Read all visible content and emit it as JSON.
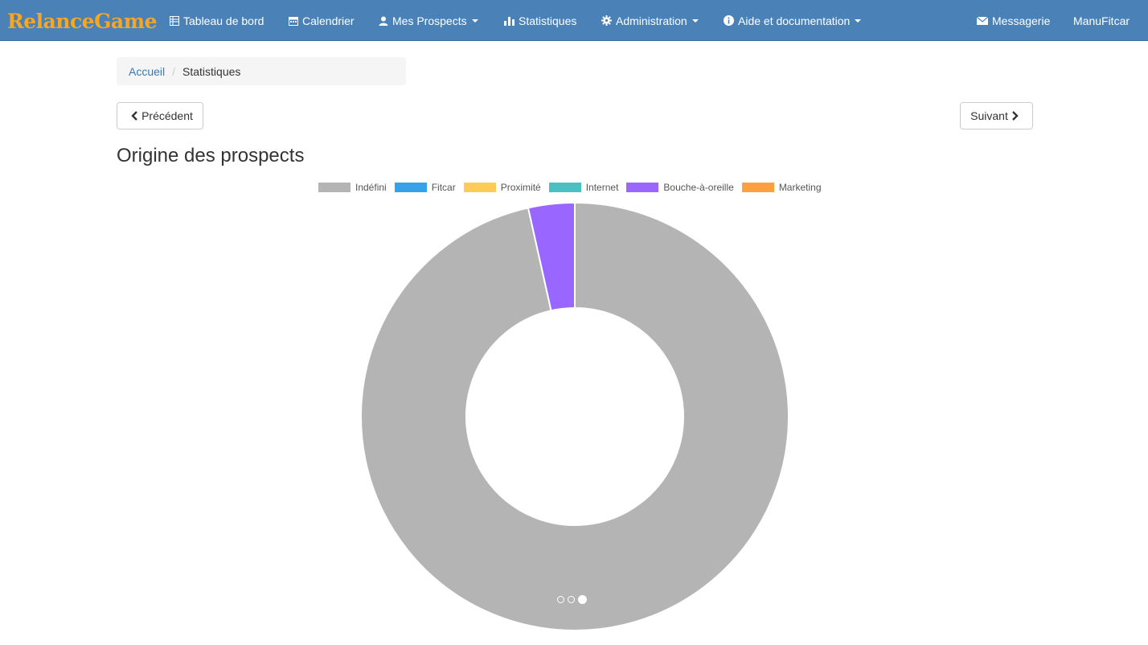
{
  "navbar": {
    "brand": "RelanceGame",
    "items": [
      {
        "label": "Tableau de bord",
        "icon": "table-icon"
      },
      {
        "label": "Calendrier",
        "icon": "calendar-icon"
      },
      {
        "label": "Mes Prospects",
        "icon": "user-icon"
      },
      {
        "label": "Statistiques",
        "icon": "stats-icon"
      },
      {
        "label": "Administration",
        "icon": "gear-icon"
      },
      {
        "label": "Aide et documentation",
        "icon": "info-icon"
      }
    ],
    "right": [
      {
        "label": "Messagerie",
        "icon": "envelope-icon"
      },
      {
        "label": "ManuFitcar"
      }
    ]
  },
  "breadcrumb": {
    "home": "Accueil",
    "current": "Statistiques"
  },
  "buttons": {
    "prev": "Précédent",
    "next": "Suivant"
  },
  "page_title": "Origine des prospects",
  "colors": {
    "navbar": "#4a82b8",
    "brand": "#f5a623"
  },
  "chart_data": {
    "type": "pie",
    "variant": "doughnut",
    "legend_position": "top",
    "series": [
      {
        "name": "Indéfini",
        "value": 96.5,
        "color": "#b4b4b4"
      },
      {
        "name": "Fitcar",
        "value": 0,
        "color": "#36a2eb"
      },
      {
        "name": "Proximité",
        "value": 0,
        "color": "#ffcd56"
      },
      {
        "name": "Internet",
        "value": 0,
        "color": "#4bc0c0"
      },
      {
        "name": "Bouche-à-oreille",
        "value": 3.5,
        "color": "#9966ff"
      },
      {
        "name": "Marketing",
        "value": 0,
        "color": "#ff9f40"
      }
    ]
  },
  "pager": {
    "count": 3,
    "active": 2
  }
}
